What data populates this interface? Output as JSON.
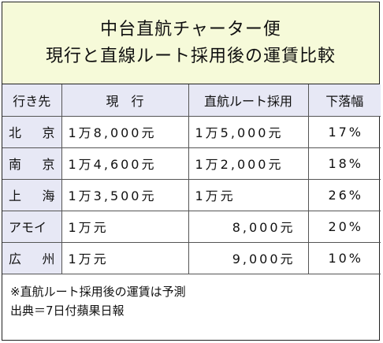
{
  "title": {
    "line1": "中台直航チャーター便",
    "line2": "現行と直線ルート採用後の運賃比較"
  },
  "table": {
    "headers": [
      "行き先",
      "現　行",
      "直航ルート採用",
      "下落幅"
    ],
    "rows": [
      {
        "city": "北京",
        "current": "1万8,000元",
        "new": "1万5,000元",
        "drop": "17%"
      },
      {
        "city": "南京",
        "current": "1万4,600元",
        "new": "1万2,000元",
        "drop": "18%"
      },
      {
        "city": "上海",
        "current": "1万3,500元",
        "new": "1万元",
        "drop": "26%"
      },
      {
        "city": "アモイ",
        "current": "1万元",
        "new": "8,000元",
        "drop": "20%"
      },
      {
        "city": "広州",
        "current": "1万元",
        "new": "9,000元",
        "drop": "10%"
      }
    ]
  },
  "notes": {
    "note1": "※直航ルート採用後の運賃は予測",
    "source": "出典＝7日付蘋果日報"
  }
}
